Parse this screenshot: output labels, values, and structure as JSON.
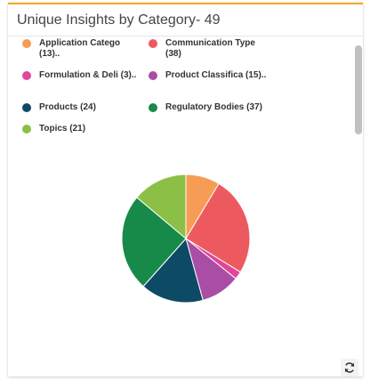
{
  "widget": {
    "title": "Unique Insights by Category- 49",
    "refresh_icon": "refresh-icon"
  },
  "colors": {
    "accent": "#f5a623",
    "scrollbar": "#c1c1c1"
  },
  "chart_data": {
    "type": "pie",
    "title": "Unique Insights by Category- 49",
    "legend_position": "top",
    "series": [
      {
        "name": "Application Catego (13)..",
        "value": 13,
        "color": "#f79c55"
      },
      {
        "name": "Communication Type (38)",
        "value": 38,
        "color": "#ec5a5f"
      },
      {
        "name": "Formulation & Deli (3)..",
        "value": 3,
        "color": "#e0469a"
      },
      {
        "name": "Product Classifica (15)..",
        "value": 15,
        "color": "#a94ea4"
      },
      {
        "name": "Products (24)",
        "value": 24,
        "color": "#0d4a66"
      },
      {
        "name": "Regulatory Bodies (37)",
        "value": 37,
        "color": "#178a4a"
      },
      {
        "name": "Topics (21)",
        "value": 21,
        "color": "#8cbf45"
      }
    ]
  }
}
